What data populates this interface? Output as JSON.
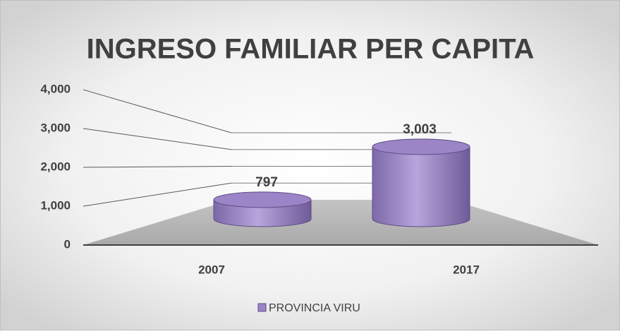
{
  "chart_data": {
    "type": "bar3d",
    "title": "INGRESO FAMILIAR PER CAPITA",
    "categories": [
      "2007",
      "2017"
    ],
    "series": [
      {
        "name": "PROVINCIA VIRU",
        "color": "#9b85c6",
        "values": [
          797,
          3003
        ],
        "value_labels": [
          "797",
          "3,003"
        ]
      }
    ],
    "ylim": [
      0,
      4000
    ],
    "yticks": [
      0,
      {
        "value": 1000,
        "label": "1,000"
      },
      {
        "value": 2000,
        "label": "2,000"
      },
      {
        "value": 3000,
        "label": "3,000"
      },
      {
        "value": 4000,
        "label": "4,000"
      }
    ],
    "grid": true,
    "legend": "bottom"
  }
}
